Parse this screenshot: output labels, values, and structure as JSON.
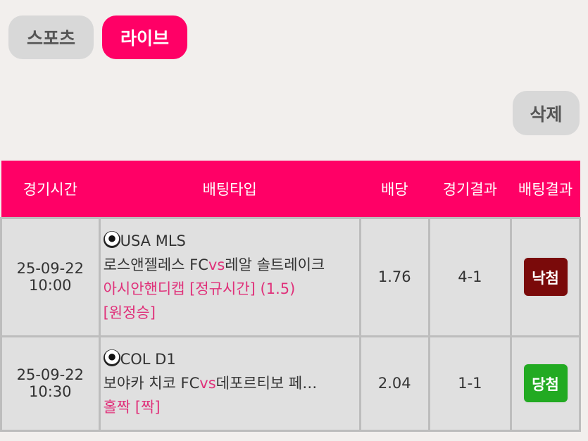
{
  "tabs": [
    {
      "label": "스포츠",
      "active": false
    },
    {
      "label": "라이브",
      "active": true
    }
  ],
  "delete_label": "삭제",
  "colors": {
    "accent": "#ff0066",
    "lose": "#7a0a0a",
    "win": "#22aa22"
  },
  "table": {
    "headers": [
      "경기시간",
      "배팅타입",
      "배당",
      "경기결과",
      "배팅결과"
    ],
    "rows": [
      {
        "date": "25-09-22",
        "time": "10:00",
        "league": "USA MLS",
        "home": "로스앤젤레스 FC",
        "vs": "vs",
        "away": "레알 솔트레이크",
        "bet_type": "아시안핸디캡 [정규시간] (1.5)",
        "pick": "[원정승]",
        "odds": "1.76",
        "score": "4-1",
        "result": "낙첨"
      },
      {
        "date": "25-09-22",
        "time": "10:30",
        "league": "COL D1",
        "home": "보야카 치코 FC",
        "vs": "vs",
        "away": "데포르티보 페…",
        "bet_type": "홀짝",
        "pick": "[짝]",
        "odds": "2.04",
        "score": "1-1",
        "result": "당첨"
      }
    ]
  }
}
